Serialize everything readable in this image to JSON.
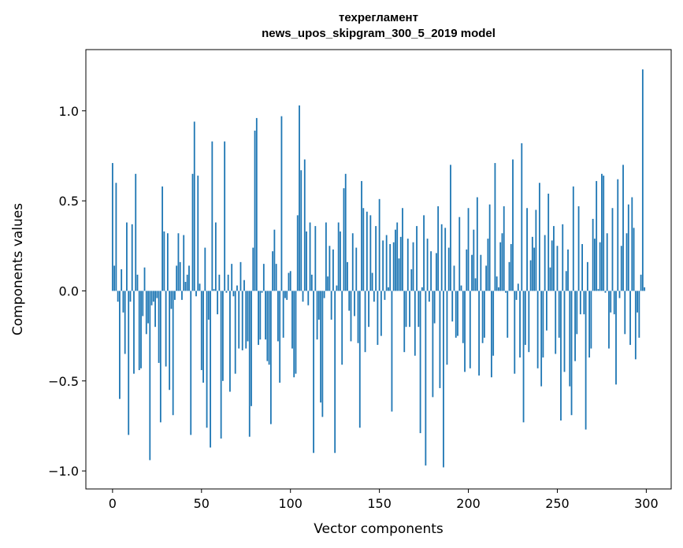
{
  "chart_data": {
    "type": "bar",
    "title_lines": [
      "техрегламент",
      "news_upos_skipgram_300_5_2019 model"
    ],
    "xlabel": "Vector components",
    "ylabel": "Components values",
    "xlim": [
      -15,
      314
    ],
    "ylim": [
      -1.1,
      1.34
    ],
    "xticks": [
      {
        "value": 0,
        "label": "0"
      },
      {
        "value": 50,
        "label": "50"
      },
      {
        "value": 100,
        "label": "100"
      },
      {
        "value": 150,
        "label": "150"
      },
      {
        "value": 200,
        "label": "200"
      },
      {
        "value": 250,
        "label": "250"
      },
      {
        "value": 300,
        "label": "300"
      }
    ],
    "yticks": [
      {
        "value": -1.0,
        "label": "−1.0"
      },
      {
        "value": -0.5,
        "label": "−0.5"
      },
      {
        "value": 0.0,
        "label": "0.0"
      },
      {
        "value": 0.5,
        "label": "0.5"
      },
      {
        "value": 1.0,
        "label": "1.0"
      }
    ],
    "bar_color": "#1f77b4",
    "grid": false,
    "values": [
      0.71,
      0.14,
      0.6,
      -0.06,
      -0.6,
      0.12,
      -0.12,
      -0.35,
      0.38,
      -0.8,
      -0.06,
      0.37,
      -0.46,
      0.65,
      0.09,
      -0.44,
      -0.43,
      -0.14,
      0.13,
      -0.24,
      -0.18,
      -0.94,
      -0.08,
      -0.06,
      -0.2,
      -0.04,
      -0.4,
      -0.73,
      0.58,
      0.33,
      -0.42,
      0.32,
      -0.55,
      -0.1,
      -0.69,
      -0.05,
      0.14,
      0.32,
      0.16,
      -0.05,
      0.31,
      0.05,
      0.09,
      0.14,
      -0.8,
      0.65,
      0.94,
      -0.03,
      0.64,
      0.04,
      -0.44,
      -0.51,
      0.24,
      -0.76,
      -0.16,
      -0.87,
      0.83,
      0.01,
      0.38,
      -0.13,
      0.09,
      -0.82,
      -0.5,
      0.83,
      -0.01,
      0.09,
      -0.56,
      0.15,
      -0.03,
      -0.46,
      0.03,
      -0.32,
      0.16,
      -0.33,
      0.06,
      -0.32,
      -0.28,
      -0.81,
      -0.64,
      0.24,
      0.89,
      0.96,
      -0.3,
      -0.27,
      -0.01,
      0.15,
      -0.27,
      -0.39,
      -0.41,
      -0.74,
      0.22,
      0.34,
      0.15,
      -0.28,
      -0.51,
      0.97,
      -0.26,
      -0.04,
      -0.05,
      0.1,
      0.11,
      -0.32,
      -0.48,
      -0.46,
      0.42,
      1.03,
      0.67,
      -0.06,
      0.73,
      0.33,
      -0.08,
      0.38,
      0.09,
      -0.9,
      0.36,
      -0.27,
      -0.16,
      -0.62,
      -0.7,
      -0.04,
      0.38,
      0.08,
      0.25,
      -0.16,
      0.23,
      -0.9,
      0.03,
      0.38,
      0.33,
      -0.41,
      0.57,
      0.65,
      0.16,
      -0.11,
      -0.28,
      0.32,
      -0.14,
      0.24,
      -0.29,
      -0.76,
      0.61,
      0.46,
      -0.34,
      0.44,
      -0.2,
      0.42,
      0.1,
      -0.06,
      0.36,
      -0.3,
      0.51,
      -0.25,
      0.28,
      -0.05,
      0.31,
      0.02,
      0.26,
      -0.67,
      0.27,
      0.34,
      0.38,
      0.18,
      0.3,
      0.46,
      -0.34,
      -0.2,
      0.29,
      -0.2,
      0.12,
      0.27,
      -0.36,
      0.36,
      -0.2,
      -0.79,
      0.02,
      0.42,
      -0.97,
      0.29,
      -0.06,
      0.22,
      -0.59,
      -0.18,
      0.21,
      0.47,
      -0.54,
      0.37,
      -0.98,
      0.35,
      -0.41,
      0.24,
      0.7,
      -0.17,
      0.14,
      -0.26,
      -0.25,
      0.41,
      0.03,
      -0.29,
      -0.45,
      0.23,
      0.46,
      -0.43,
      0.2,
      0.34,
      0.07,
      0.52,
      -0.47,
      0.2,
      -0.29,
      -0.26,
      0.14,
      0.29,
      0.48,
      -0.48,
      -0.36,
      0.71,
      0.08,
      0.02,
      0.27,
      0.32,
      0.47,
      -0.01,
      -0.26,
      0.16,
      0.26,
      0.73,
      -0.46,
      -0.05,
      0.04,
      -0.37,
      0.82,
      -0.73,
      -0.3,
      0.46,
      -0.34,
      0.17,
      0.3,
      0.24,
      0.45,
      -0.43,
      0.6,
      -0.53,
      -0.37,
      0.31,
      -0.22,
      0.54,
      0.13,
      0.28,
      0.36,
      -0.35,
      0.25,
      -0.26,
      -0.72,
      0.37,
      -0.45,
      0.11,
      0.23,
      -0.53,
      -0.69,
      0.58,
      -0.39,
      -0.24,
      0.47,
      -0.13,
      0.26,
      -0.13,
      -0.77,
      0.16,
      -0.37,
      -0.32,
      0.4,
      0.29,
      0.61,
      0.01,
      0.27,
      0.65,
      0.64,
      -0.01,
      0.32,
      -0.32,
      -0.12,
      0.46,
      -0.13,
      -0.52,
      0.62,
      -0.04,
      0.25,
      0.7,
      -0.24,
      0.32,
      0.48,
      -0.3,
      0.52,
      0.35,
      -0.38,
      -0.12,
      -0.26,
      0.09,
      1.23,
      0.02
    ]
  }
}
